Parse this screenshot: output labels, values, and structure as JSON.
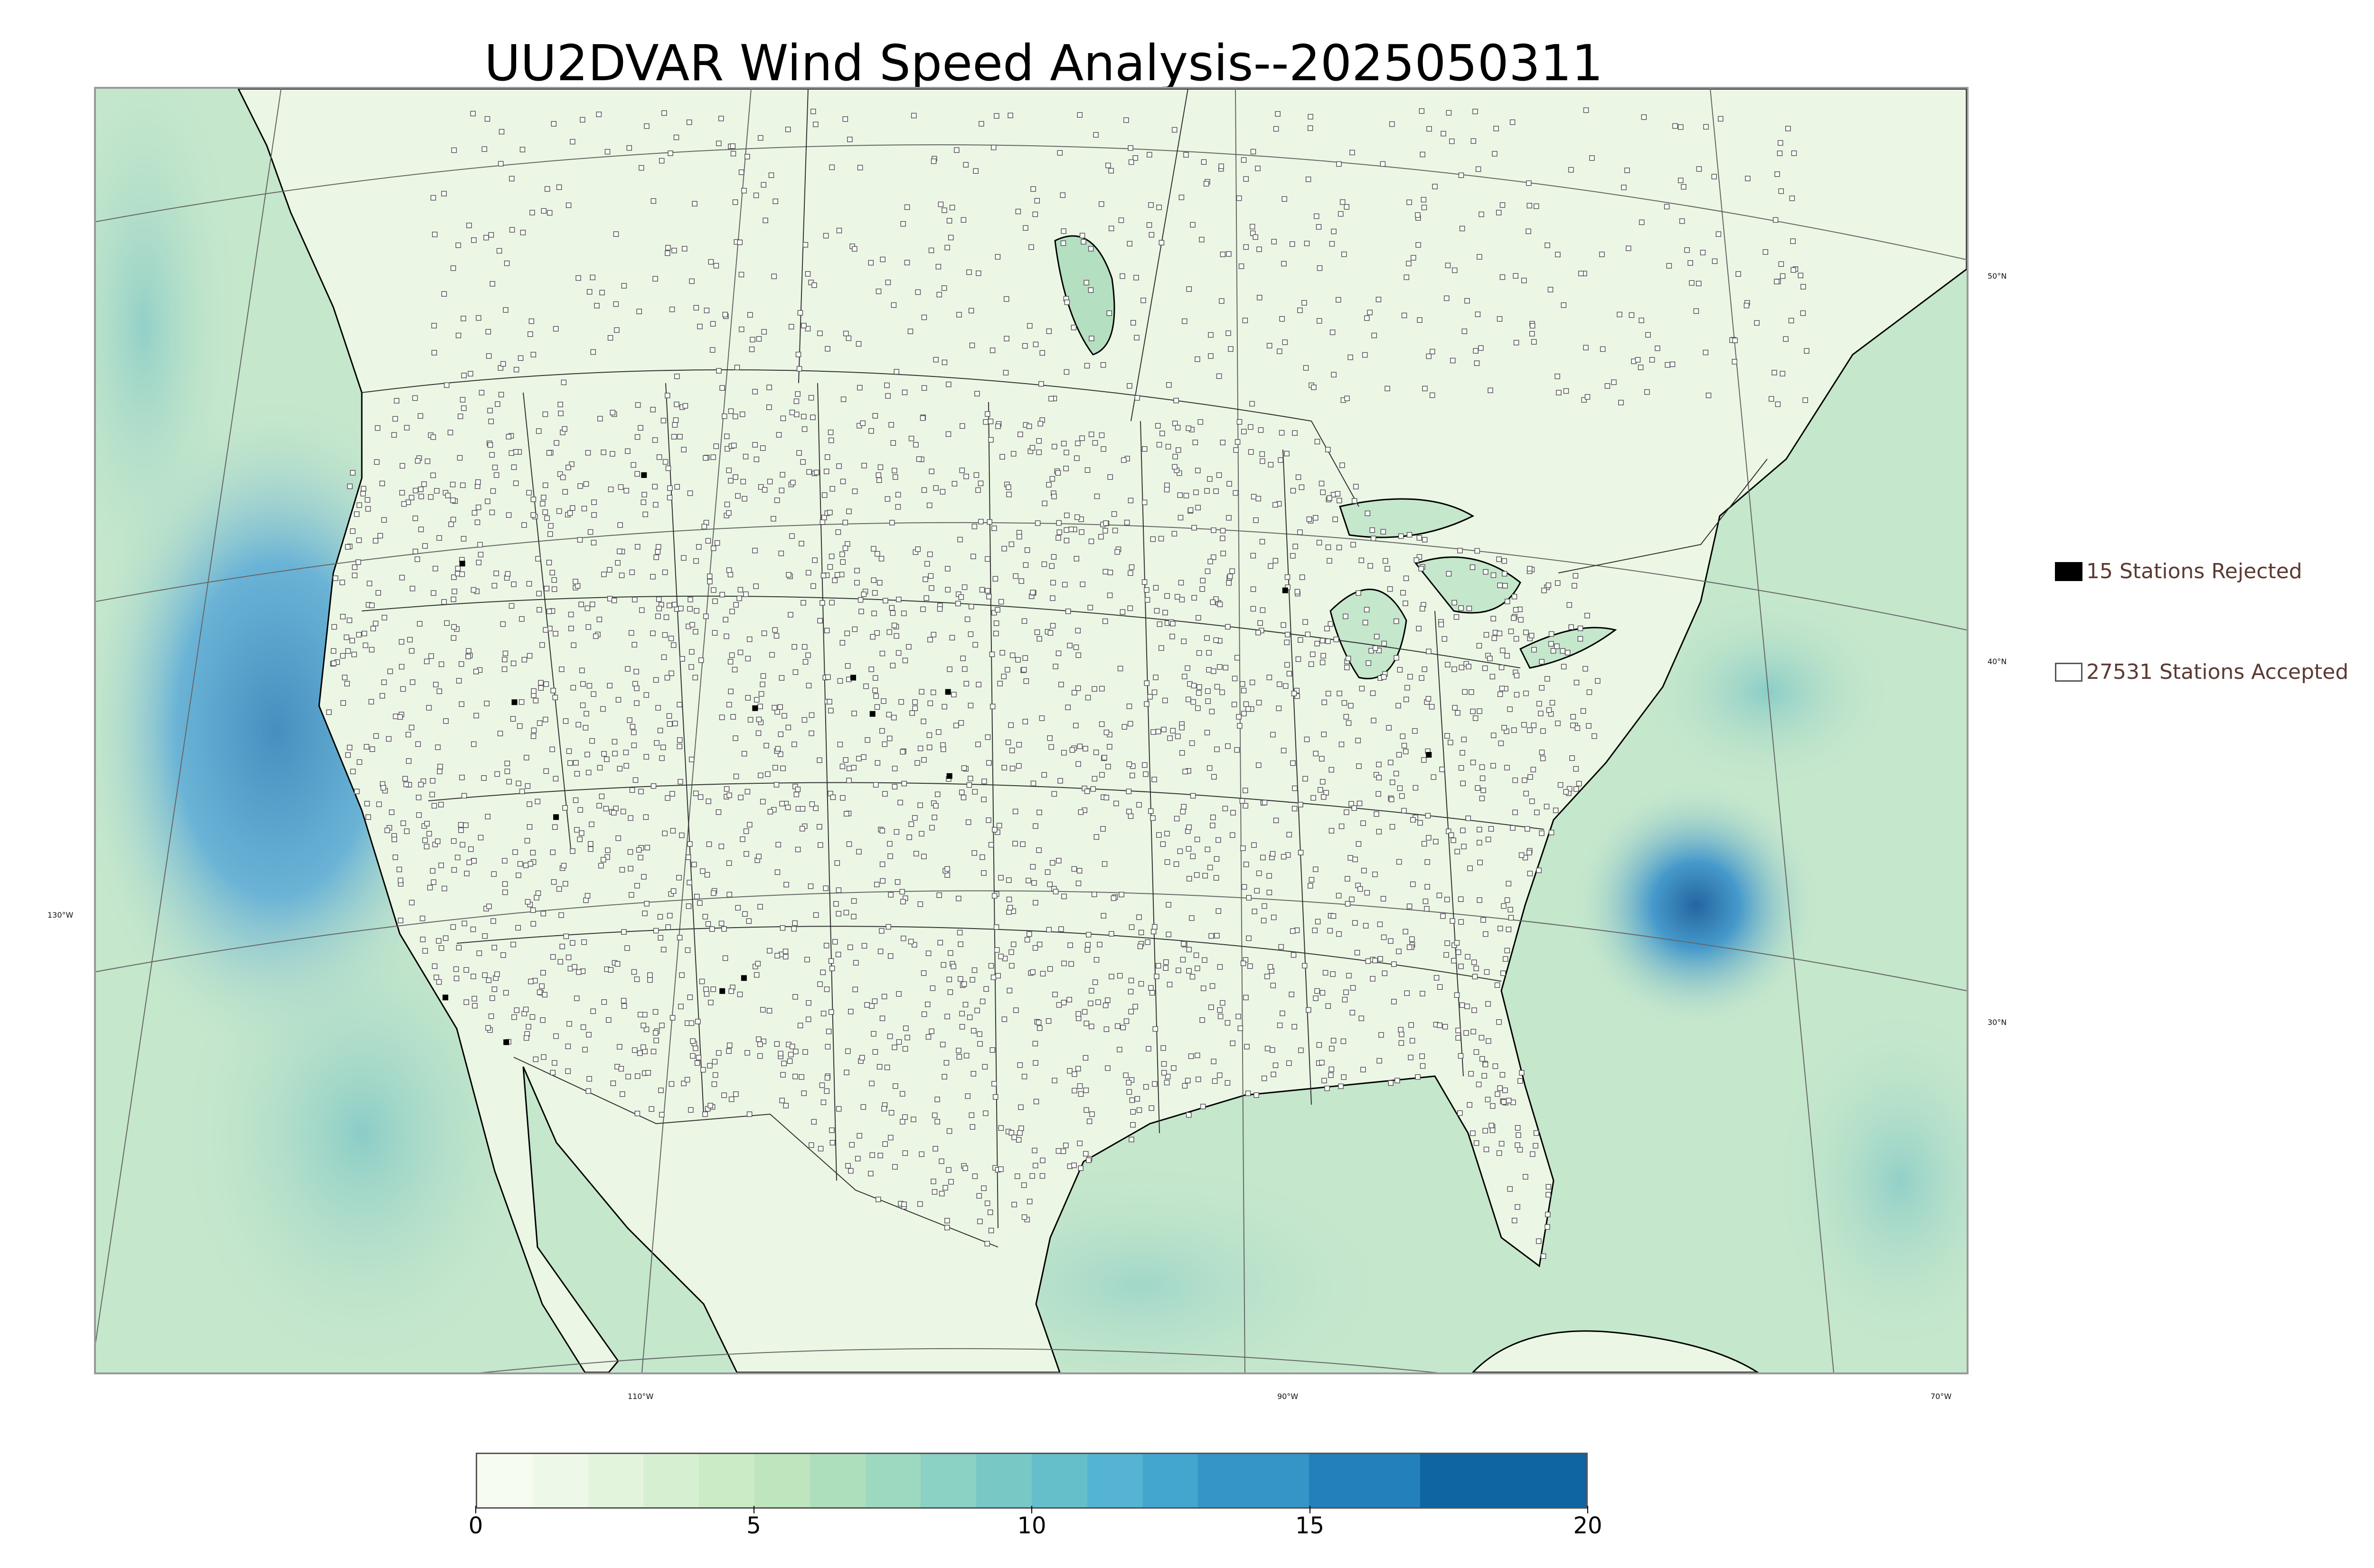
{
  "title": "UU2DVAR Wind Speed Analysis--2025050311",
  "map": {
    "projection": "lambert-conformal",
    "region": "CONUS",
    "latitude_labels": [
      "50°N",
      "40°N",
      "30°N"
    ],
    "longitude_labels": [
      "130°W",
      "110°W",
      "90°W",
      "70°W"
    ],
    "colors": {
      "ocean_low": "#bfe3c8",
      "ocean_high": "#4a9fd0",
      "land": "#eaf6e3",
      "coast": "#000000",
      "borders": "#333333",
      "grid": "#666666"
    }
  },
  "legend": {
    "rejected": {
      "label": "15 Stations Rejected",
      "count": 15
    },
    "accepted": {
      "label": "27531 Stations Accepted",
      "count": 27531
    }
  },
  "colorbar": {
    "min": 0,
    "max": 20,
    "ticks": [
      "0",
      "5",
      "10",
      "15",
      "20"
    ],
    "bounds": [
      0,
      1,
      2,
      3,
      4,
      5,
      6,
      7,
      8,
      9,
      10,
      11,
      12,
      13,
      15,
      17,
      20
    ],
    "colors": [
      "#f7fcf0",
      "#eef8e9",
      "#e3f4dd",
      "#d7efd1",
      "#cbebc5",
      "#bee5be",
      "#aedfbd",
      "#9dd8c0",
      "#8bd1c4",
      "#78c8c6",
      "#65bfcb",
      "#54b4d2",
      "#43a6cf",
      "#3495c6",
      "#2380ba",
      "#0f64a2"
    ]
  }
}
